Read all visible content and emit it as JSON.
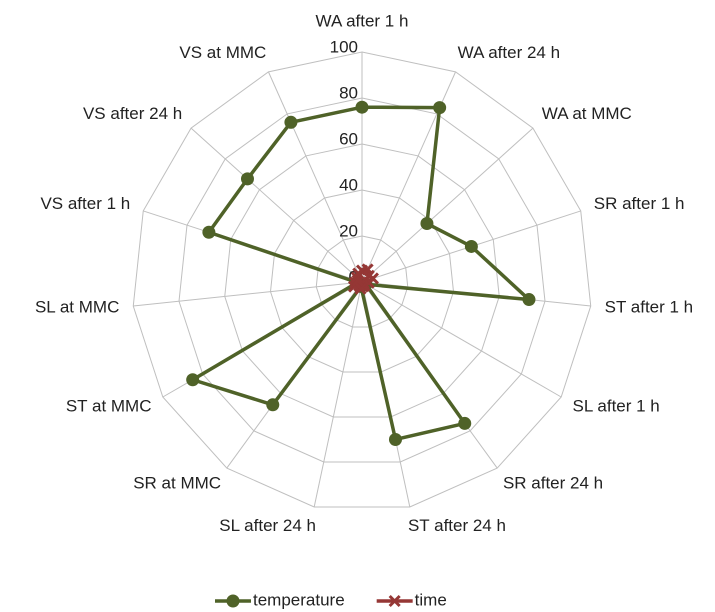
{
  "chart_data": {
    "type": "radar",
    "categories": [
      "WA after 1 h",
      "WA after 24 h",
      "WA at MMC",
      "SR after 1 h",
      "ST after 1 h",
      "SL after 1 h",
      "SR after 24 h",
      "ST after 24 h",
      "SL after 24 h",
      "SR at MMC",
      "ST at MMC",
      "SL at MMC",
      "VS after 1 h",
      "VS after 24 h",
      "VS at MMC"
    ],
    "series": [
      {
        "name": "temperature",
        "color": "#4f6228",
        "marker": "circle",
        "values": [
          76,
          83,
          38,
          50,
          73,
          2,
          76,
          70,
          2,
          66,
          85,
          2,
          70,
          67,
          76
        ]
      },
      {
        "name": "time",
        "color": "#953735",
        "marker": "x",
        "values": [
          5,
          6,
          4,
          5,
          3,
          1,
          2,
          2,
          3,
          2,
          4,
          3,
          2,
          3,
          4
        ]
      }
    ],
    "ylim": [
      0,
      100
    ],
    "yticks": [
      0,
      20,
      40,
      60,
      80,
      100
    ],
    "grid": true,
    "legend": "bottom"
  }
}
